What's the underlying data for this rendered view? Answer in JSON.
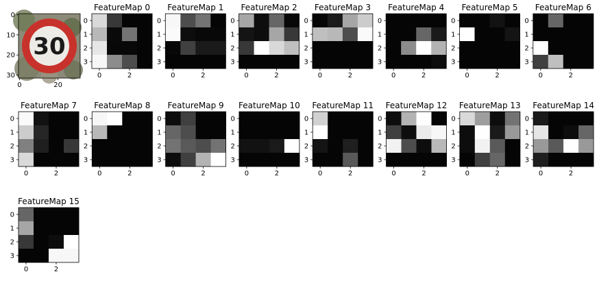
{
  "chart_data": {
    "type": "heatmap",
    "colormap": "gray",
    "input_image": {
      "content": "speed limit 30 road sign",
      "sign_text": "30",
      "y_ticks": [
        "0",
        "10",
        "20",
        "30"
      ],
      "x_ticks": [
        "0",
        "20"
      ]
    },
    "x_ticks": [
      "0",
      "2"
    ],
    "y_ticks": [
      "0",
      "1",
      "2",
      "3"
    ],
    "maps": [
      {
        "title": "FeatureMap 0",
        "values": [
          [
            0.85,
            0.22,
            0.02,
            0.02
          ],
          [
            0.72,
            0.04,
            0.45,
            0.02
          ],
          [
            0.9,
            0.03,
            0.03,
            0.02
          ],
          [
            0.97,
            0.55,
            0.3,
            0.02
          ]
        ]
      },
      {
        "title": "FeatureMap 1",
        "values": [
          [
            0.97,
            0.3,
            0.45,
            0.02
          ],
          [
            0.98,
            0.05,
            0.03,
            0.03
          ],
          [
            0.03,
            0.25,
            0.1,
            0.1
          ],
          [
            0.02,
            0.02,
            0.02,
            0.02
          ]
        ]
      },
      {
        "title": "FeatureMap 2",
        "values": [
          [
            0.65,
            0.05,
            0.4,
            0.03
          ],
          [
            0.08,
            0.05,
            0.65,
            0.22
          ],
          [
            0.22,
            1.0,
            0.85,
            0.75
          ],
          [
            0.02,
            0.02,
            0.02,
            0.02
          ]
        ]
      },
      {
        "title": "FeatureMap 3",
        "values": [
          [
            0.02,
            0.1,
            0.65,
            0.8
          ],
          [
            0.75,
            0.72,
            0.3,
            0.98
          ],
          [
            0.02,
            0.02,
            0.02,
            0.02
          ],
          [
            0.02,
            0.02,
            0.02,
            0.02
          ]
        ]
      },
      {
        "title": "FeatureMap 4",
        "values": [
          [
            0.02,
            0.02,
            0.02,
            0.02
          ],
          [
            0.02,
            0.02,
            0.4,
            0.1
          ],
          [
            0.02,
            0.55,
            1.0,
            0.7
          ],
          [
            0.02,
            0.02,
            0.02,
            0.05
          ]
        ]
      },
      {
        "title": "FeatureMap 5",
        "values": [
          [
            0.02,
            0.02,
            0.07,
            0.02
          ],
          [
            1.0,
            0.02,
            0.02,
            0.08
          ],
          [
            0.02,
            0.02,
            0.02,
            0.02
          ],
          [
            0.02,
            0.02,
            0.02,
            0.02
          ]
        ]
      },
      {
        "title": "FeatureMap 6",
        "values": [
          [
            0.02,
            0.4,
            0.02,
            0.02
          ],
          [
            0.02,
            0.02,
            0.02,
            0.02
          ],
          [
            1.0,
            0.02,
            0.02,
            0.02
          ],
          [
            0.25,
            0.75,
            0.02,
            0.02
          ]
        ]
      },
      {
        "title": "FeatureMap 7",
        "values": [
          [
            0.98,
            0.07,
            0.02,
            0.02
          ],
          [
            0.8,
            0.15,
            0.02,
            0.02
          ],
          [
            0.5,
            0.12,
            0.02,
            0.22
          ],
          [
            0.85,
            0.02,
            0.02,
            0.02
          ]
        ]
      },
      {
        "title": "FeatureMap 8",
        "values": [
          [
            0.97,
            1.0,
            0.02,
            0.02
          ],
          [
            0.72,
            0.02,
            0.02,
            0.02
          ],
          [
            0.02,
            0.02,
            0.02,
            0.02
          ],
          [
            0.02,
            0.02,
            0.02,
            0.02
          ]
        ]
      },
      {
        "title": "FeatureMap 9",
        "values": [
          [
            0.05,
            0.25,
            0.02,
            0.02
          ],
          [
            0.4,
            0.3,
            0.02,
            0.02
          ],
          [
            0.45,
            0.35,
            0.3,
            0.45
          ],
          [
            0.05,
            0.25,
            0.7,
            1.0
          ]
        ]
      },
      {
        "title": "FeatureMap 10",
        "values": [
          [
            0.02,
            0.02,
            0.02,
            0.02
          ],
          [
            0.02,
            0.02,
            0.02,
            0.02
          ],
          [
            0.07,
            0.07,
            0.1,
            1.0
          ],
          [
            0.02,
            0.02,
            0.02,
            0.02
          ]
        ]
      },
      {
        "title": "FeatureMap 11",
        "values": [
          [
            0.82,
            0.02,
            0.02,
            0.02
          ],
          [
            1.0,
            0.02,
            0.02,
            0.02
          ],
          [
            0.08,
            0.02,
            0.12,
            0.02
          ],
          [
            0.02,
            0.02,
            0.35,
            0.02
          ]
        ]
      },
      {
        "title": "FeatureMap 12",
        "values": [
          [
            0.05,
            0.7,
            1.0,
            0.02
          ],
          [
            0.25,
            0.05,
            0.92,
            0.97
          ],
          [
            0.95,
            0.3,
            0.05,
            0.72
          ],
          [
            0.02,
            0.02,
            0.02,
            0.02
          ]
        ]
      },
      {
        "title": "FeatureMap 13",
        "values": [
          [
            0.85,
            0.62,
            0.05,
            0.45
          ],
          [
            0.05,
            1.0,
            0.1,
            0.6
          ],
          [
            0.05,
            0.95,
            0.35,
            0.02
          ],
          [
            0.02,
            0.25,
            0.4,
            0.02
          ]
        ]
      },
      {
        "title": "FeatureMap 14",
        "values": [
          [
            0.1,
            0.02,
            0.02,
            0.02
          ],
          [
            0.9,
            0.02,
            0.05,
            0.4
          ],
          [
            0.6,
            0.35,
            1.0,
            0.6
          ],
          [
            0.12,
            0.02,
            0.02,
            0.02
          ]
        ]
      },
      {
        "title": "FeatureMap 15",
        "values": [
          [
            0.4,
            0.02,
            0.02,
            0.02
          ],
          [
            0.65,
            0.02,
            0.02,
            0.02
          ],
          [
            0.22,
            0.02,
            0.05,
            1.0
          ],
          [
            0.02,
            0.02,
            0.97,
            0.97
          ]
        ]
      }
    ]
  }
}
